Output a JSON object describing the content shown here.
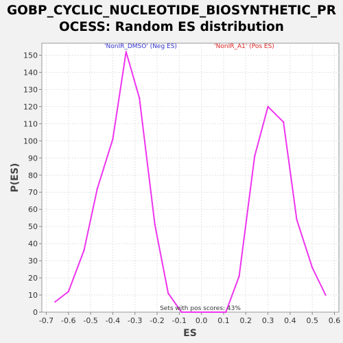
{
  "title_line1": "GOBP_CYCLIC_NUCLEOTIDE_BIOSYNTHETIC_PR",
  "title_line2": "OCESS: Random ES distribution",
  "chart_data": {
    "type": "line",
    "title": "GOBP_CYCLIC_NUCLEOTIDE_BIOSYNTHETIC_PROCESS: Random ES distribution",
    "xlabel": "ES",
    "ylabel": "P(ES)",
    "xlim": [
      -0.72,
      0.62
    ],
    "ylim": [
      0,
      157
    ],
    "xticks": [
      -0.7,
      -0.6,
      -0.5,
      -0.4,
      -0.3,
      -0.2,
      -0.1,
      0.0,
      0.1,
      0.2,
      0.3,
      0.4,
      0.5,
      0.6
    ],
    "xtick_labels": [
      "-0.7",
      "-0.6",
      "-0.5",
      "-0.4",
      "-0.3",
      "-0.2",
      "-0.1",
      "0.0",
      "0.1",
      "0.2",
      "0.3",
      "0.4",
      "0.5",
      "0.6"
    ],
    "yticks": [
      0,
      10,
      20,
      30,
      40,
      50,
      60,
      70,
      80,
      90,
      100,
      110,
      120,
      130,
      140,
      150
    ],
    "ytick_labels": [
      "0",
      "10",
      "20",
      "30",
      "40",
      "50",
      "60",
      "70",
      "80",
      "90",
      "100",
      "110",
      "120",
      "130",
      "140",
      "150"
    ],
    "grid": true,
    "line_color": "#ee33ee",
    "series": [
      {
        "x": [
          -0.66,
          -0.6,
          -0.53,
          -0.47,
          -0.4,
          -0.34,
          -0.28,
          -0.21,
          -0.15,
          -0.09,
          -0.03,
          0.05,
          0.11,
          0.17,
          0.24,
          0.3,
          0.37,
          0.43,
          0.5,
          0.56
        ],
        "values": [
          6,
          12,
          36,
          72,
          101,
          152,
          125,
          51,
          11,
          0,
          0,
          0,
          0,
          21,
          91,
          120,
          111,
          54,
          26,
          10
        ]
      }
    ],
    "annotations": [
      {
        "text": "'NonIR_DMSO' (Neg ES)",
        "color": "#3333cc"
      },
      {
        "text": "'NonIR_A1' (Pos ES)",
        "color": "#dd2222"
      },
      {
        "text": "Sets with pos scores: 43%",
        "color": "#333333"
      }
    ]
  }
}
